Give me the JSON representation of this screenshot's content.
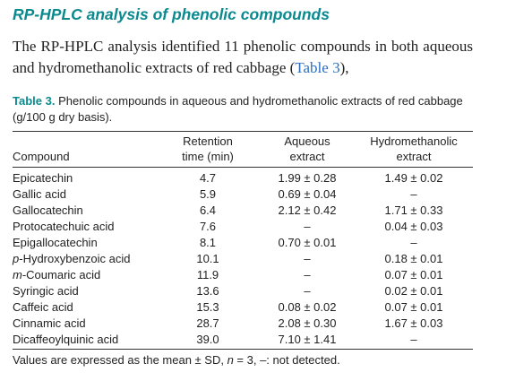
{
  "section": {
    "title": "RP-HPLC analysis of phenolic compounds",
    "paragraph": [
      {
        "text": "The RP-HPLC analysis identified 11 phenolic compounds in both aqueous and hydromethanolic extracts of red cabbage ("
      },
      {
        "text": "Table 3",
        "link": true
      },
      {
        "text": "),"
      }
    ]
  },
  "table": {
    "label": "Table 3.",
    "caption": "Phenolic compounds in aqueous and hydromethanolic extracts of red cabbage (g/100 g dry basis).",
    "headers": [
      [
        "Compound"
      ],
      [
        "Retention",
        "time (min)"
      ],
      [
        "Aqueous",
        "extract"
      ],
      [
        "Hydromethanolic",
        "extract"
      ]
    ],
    "rows": [
      [
        [
          {
            "text": "Epicatechin"
          }
        ],
        "4.7",
        "1.99 ± 0.28",
        "1.49 ± 0.02"
      ],
      [
        [
          {
            "text": "Gallic acid"
          }
        ],
        "5.9",
        "0.69 ± 0.04",
        "–"
      ],
      [
        [
          {
            "text": "Gallocatechin"
          }
        ],
        "6.4",
        "2.12 ± 0.42",
        "1.71 ± 0.33"
      ],
      [
        [
          {
            "text": "Protocatechuic acid"
          }
        ],
        "7.6",
        "–",
        "0.04 ± 0.03"
      ],
      [
        [
          {
            "text": "Epigallocatechin"
          }
        ],
        "8.1",
        "0.70 ± 0.01",
        "–"
      ],
      [
        [
          {
            "text": "p",
            "italic": true
          },
          {
            "text": "-Hydroxybenzoic acid"
          }
        ],
        "10.1",
        "–",
        "0.18 ± 0.01"
      ],
      [
        [
          {
            "text": "m",
            "italic": true
          },
          {
            "text": "-Coumaric acid"
          }
        ],
        "11.9",
        "–",
        "0.07 ± 0.01"
      ],
      [
        [
          {
            "text": "Syringic acid"
          }
        ],
        "13.6",
        "–",
        "0.02 ± 0.01"
      ],
      [
        [
          {
            "text": "Caffeic acid"
          }
        ],
        "15.3",
        "0.08 ± 0.02",
        "0.07 ± 0.01"
      ],
      [
        [
          {
            "text": "Cinnamic acid"
          }
        ],
        "28.7",
        "2.08 ± 0.30",
        "1.67 ± 0.03"
      ],
      [
        [
          {
            "text": "Dicaffeoylquinic acid"
          }
        ],
        "39.0",
        "7.10 ± 1.41",
        "–"
      ]
    ],
    "footnote": [
      {
        "text": "Values are expressed as the mean ± SD, "
      },
      {
        "text": "n",
        "italic": true
      },
      {
        "text": " = 3, –: not detected."
      }
    ]
  }
}
